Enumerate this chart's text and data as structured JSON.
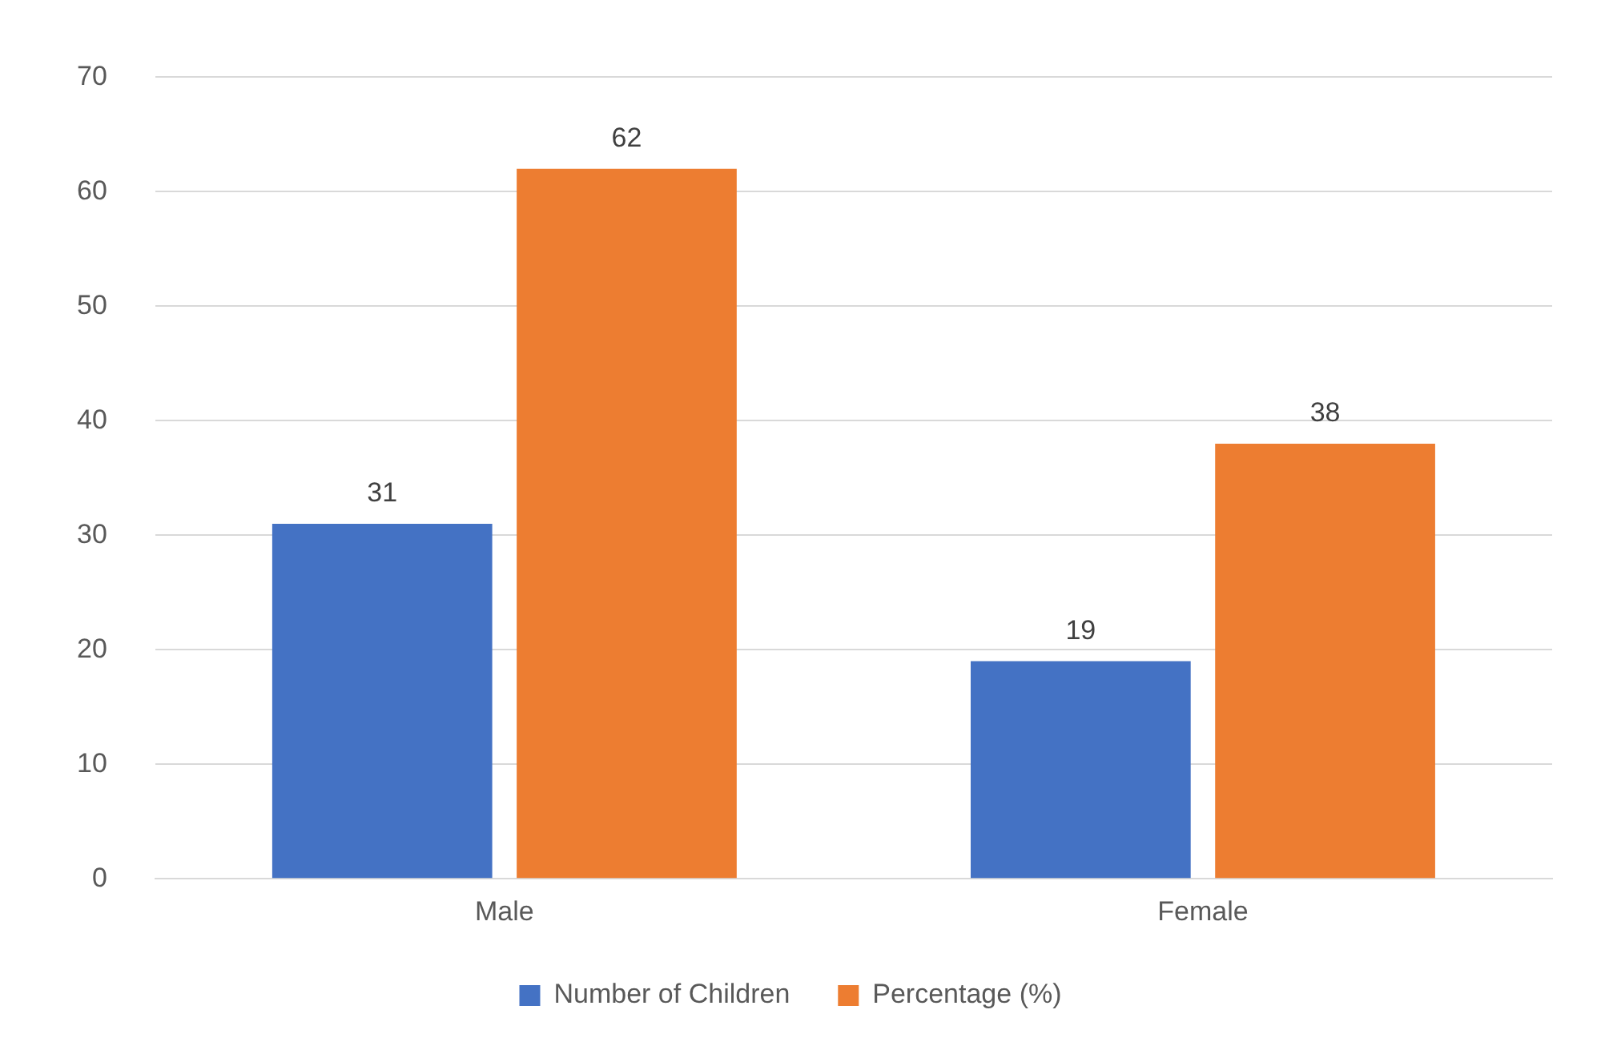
{
  "chart_data": {
    "type": "bar",
    "categories": [
      "Male",
      "Female"
    ],
    "series": [
      {
        "name": "Number of Children",
        "color": "#4472c4",
        "values": [
          31,
          19
        ]
      },
      {
        "name": "Percentage (%)",
        "color": "#ed7d31",
        "values": [
          62,
          38
        ]
      }
    ],
    "ylim": [
      0,
      70
    ],
    "yticks": [
      0,
      10,
      20,
      30,
      40,
      50,
      60,
      70
    ],
    "grid": "y",
    "legend": "bottom",
    "data_labels": true
  }
}
